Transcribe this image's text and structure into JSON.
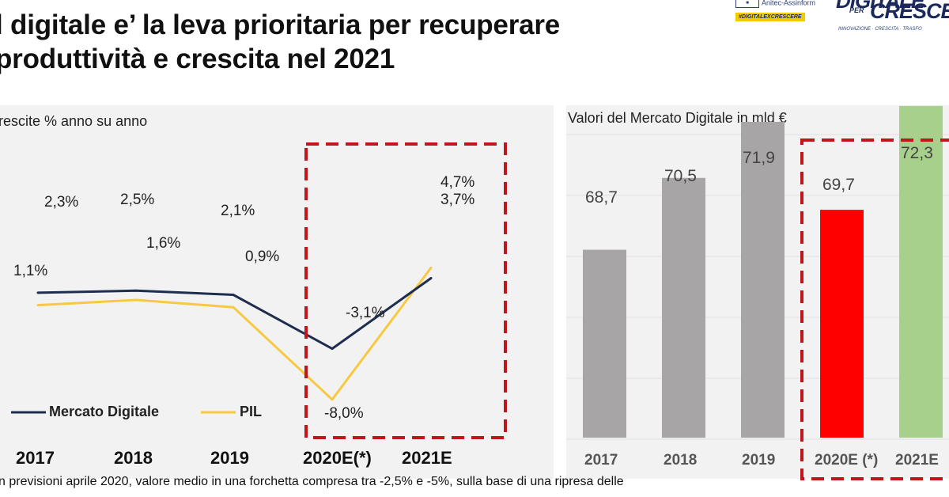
{
  "title_line1": "l digitale e’ la leva prioritaria per recuperare",
  "title_line2": "produttività e crescita nel 2021",
  "logos": {
    "assinform": "Anitec-Assinform",
    "hashtag": "#DIGITALEXCRESCERE",
    "brand_top": "DIGITALE",
    "brand_per": "PER",
    "brand_bottom": "CRESCE",
    "brand_tag": "INNOVAZIONE · CRESCITA · TRASFO"
  },
  "footnote": "n previsioni aprile 2020, valore medio in una forchetta compresa tra -2,5% e -5%, sulla base di una ripresa delle",
  "colors": {
    "mercato": "#1f2d4f",
    "pil": "#f7c943",
    "highlight_box": "#c0151a",
    "bar_gray": "#a7a5a6",
    "bar_red": "#ff0000",
    "bar_green": "#a7d08c"
  },
  "chart_data": [
    {
      "type": "line",
      "subtitle": "rescite % anno su anno",
      "categories": [
        "2017",
        "2018",
        "2019",
        "2020E(*)",
        "2021E"
      ],
      "series": [
        {
          "name": "Mercato Digitale",
          "values": [
            2.3,
            2.5,
            2.1,
            -3.1,
            3.7
          ],
          "labels": [
            "2,3%",
            "2,5%",
            "2,1%",
            "-3,1%",
            "3,7%"
          ]
        },
        {
          "name": "PIL",
          "values": [
            1.1,
            1.6,
            0.9,
            -8.0,
            4.7
          ],
          "labels": [
            "1,1%",
            "1,6%",
            "0,9%",
            "-8,0%",
            "4,7%"
          ]
        }
      ],
      "highlight": [
        "2020E(*)",
        "2021E"
      ]
    },
    {
      "type": "bar",
      "subtitle": "Valori del Mercato Digitale in mld €",
      "categories": [
        "2017",
        "2018",
        "2019",
        "2020E (*)",
        "2021E"
      ],
      "values": [
        68.7,
        70.5,
        71.9,
        69.7,
        72.3
      ],
      "labels": [
        "68,7",
        "70,5",
        "71,9",
        "69,7",
        "72,3"
      ],
      "bar_colors": [
        "#a7a5a6",
        "#a7a5a6",
        "#a7a5a6",
        "#ff0000",
        "#a7d08c"
      ],
      "highlight": [
        "2020E (*)",
        "2021E"
      ]
    }
  ]
}
